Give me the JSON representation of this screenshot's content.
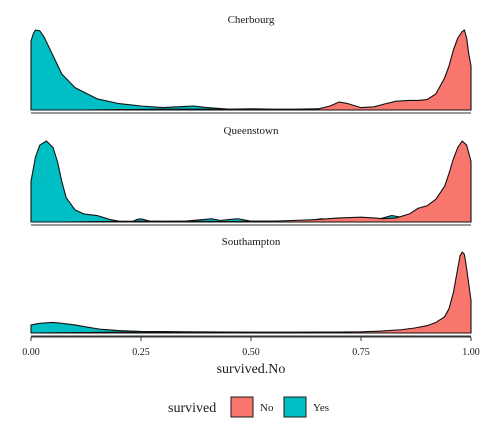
{
  "chart_data": {
    "type": "area",
    "chart_kind": "density ridgeline (faceted)",
    "xlabel": "survived.No",
    "ylabel": "",
    "xlim": [
      0,
      1
    ],
    "x_ticks": [
      0.0,
      0.25,
      0.5,
      0.75,
      1.0
    ],
    "x_tick_labels": [
      "0.00",
      "0.25",
      "0.50",
      "0.75",
      "1.00"
    ],
    "grid": false,
    "legend": {
      "title": "survived",
      "position": "bottom",
      "entries": [
        {
          "label": "No",
          "color": "#F8766D"
        },
        {
          "label": "Yes",
          "color": "#00BFC4"
        }
      ]
    },
    "series_colors": {
      "No": "#F8766D",
      "Yes": "#00BFC4"
    },
    "facets": [
      {
        "title": "Cherbourg",
        "series": [
          {
            "name": "Yes",
            "points": [
              [
                0.0,
                0.86
              ],
              [
                0.005,
                0.95
              ],
              [
                0.01,
                1.0
              ],
              [
                0.02,
                0.99
              ],
              [
                0.03,
                0.91
              ],
              [
                0.05,
                0.68
              ],
              [
                0.07,
                0.45
              ],
              [
                0.1,
                0.28
              ],
              [
                0.15,
                0.14
              ],
              [
                0.2,
                0.08
              ],
              [
                0.25,
                0.05
              ],
              [
                0.3,
                0.03
              ],
              [
                0.35,
                0.045
              ],
              [
                0.37,
                0.05
              ],
              [
                0.4,
                0.03
              ],
              [
                0.45,
                0.01
              ],
              [
                0.5,
                0.015
              ],
              [
                0.55,
                0.01
              ],
              [
                0.6,
                0.01
              ],
              [
                0.65,
                0.015
              ],
              [
                0.7,
                0.015
              ],
              [
                0.75,
                0.02
              ],
              [
                0.8,
                0.03
              ],
              [
                0.84,
                0.08
              ],
              [
                0.87,
                0.09
              ],
              [
                0.9,
                0.05
              ],
              [
                0.92,
                0.02
              ],
              [
                0.93,
                0.0
              ]
            ]
          },
          {
            "name": "No",
            "points": [
              [
                0.13,
                0.0
              ],
              [
                0.2,
                0.005
              ],
              [
                0.3,
                0.01
              ],
              [
                0.4,
                0.01
              ],
              [
                0.5,
                0.005
              ],
              [
                0.6,
                0.005
              ],
              [
                0.65,
                0.01
              ],
              [
                0.68,
                0.05
              ],
              [
                0.7,
                0.1
              ],
              [
                0.72,
                0.08
              ],
              [
                0.75,
                0.03
              ],
              [
                0.78,
                0.04
              ],
              [
                0.8,
                0.07
              ],
              [
                0.83,
                0.11
              ],
              [
                0.86,
                0.12
              ],
              [
                0.88,
                0.12
              ],
              [
                0.9,
                0.13
              ],
              [
                0.92,
                0.2
              ],
              [
                0.94,
                0.4
              ],
              [
                0.95,
                0.55
              ],
              [
                0.96,
                0.75
              ],
              [
                0.97,
                0.9
              ],
              [
                0.98,
                0.98
              ],
              [
                0.985,
                1.0
              ],
              [
                0.99,
                0.9
              ],
              [
                0.995,
                0.7
              ],
              [
                1.0,
                0.55
              ]
            ]
          }
        ]
      },
      {
        "title": "Queenstown",
        "series": [
          {
            "name": "Yes",
            "points": [
              [
                0.0,
                0.5
              ],
              [
                0.01,
                0.8
              ],
              [
                0.02,
                0.95
              ],
              [
                0.035,
                1.0
              ],
              [
                0.05,
                0.92
              ],
              [
                0.06,
                0.75
              ],
              [
                0.07,
                0.5
              ],
              [
                0.08,
                0.3
              ],
              [
                0.1,
                0.15
              ],
              [
                0.12,
                0.1
              ],
              [
                0.15,
                0.08
              ],
              [
                0.18,
                0.03
              ],
              [
                0.2,
                0.01
              ],
              [
                0.23,
                0.005
              ],
              [
                0.24,
                0.03
              ],
              [
                0.25,
                0.04
              ],
              [
                0.27,
                0.01
              ],
              [
                0.3,
                0.005
              ],
              [
                0.35,
                0.01
              ],
              [
                0.39,
                0.03
              ],
              [
                0.41,
                0.04
              ],
              [
                0.43,
                0.02
              ],
              [
                0.45,
                0.03
              ],
              [
                0.47,
                0.04
              ],
              [
                0.5,
                0.01
              ],
              [
                0.55,
                0.01
              ],
              [
                0.6,
                0.01
              ],
              [
                0.63,
                0.02
              ],
              [
                0.66,
                0.04
              ],
              [
                0.68,
                0.03
              ],
              [
                0.7,
                0.015
              ],
              [
                0.75,
                0.01
              ],
              [
                0.78,
                0.02
              ],
              [
                0.8,
                0.05
              ],
              [
                0.82,
                0.08
              ],
              [
                0.84,
                0.06
              ],
              [
                0.86,
                0.02
              ],
              [
                0.9,
                0.01
              ],
              [
                0.93,
                0.01
              ],
              [
                0.95,
                0.04
              ],
              [
                0.96,
                0.08
              ],
              [
                0.97,
                0.05
              ],
              [
                0.975,
                0.0
              ]
            ]
          },
          {
            "name": "No",
            "points": [
              [
                0.08,
                0.0
              ],
              [
                0.15,
                0.005
              ],
              [
                0.25,
                0.01
              ],
              [
                0.35,
                0.01
              ],
              [
                0.45,
                0.005
              ],
              [
                0.5,
                0.01
              ],
              [
                0.55,
                0.01
              ],
              [
                0.6,
                0.02
              ],
              [
                0.65,
                0.03
              ],
              [
                0.7,
                0.05
              ],
              [
                0.75,
                0.06
              ],
              [
                0.78,
                0.05
              ],
              [
                0.8,
                0.04
              ],
              [
                0.83,
                0.05
              ],
              [
                0.86,
                0.1
              ],
              [
                0.88,
                0.17
              ],
              [
                0.9,
                0.2
              ],
              [
                0.92,
                0.28
              ],
              [
                0.94,
                0.44
              ],
              [
                0.95,
                0.6
              ],
              [
                0.96,
                0.78
              ],
              [
                0.97,
                0.92
              ],
              [
                0.98,
                1.0
              ],
              [
                0.99,
                0.95
              ],
              [
                1.0,
                0.75
              ]
            ]
          }
        ]
      },
      {
        "title": "Southampton",
        "series": [
          {
            "name": "Yes",
            "points": [
              [
                0.0,
                0.1
              ],
              [
                0.02,
                0.12
              ],
              [
                0.05,
                0.13
              ],
              [
                0.07,
                0.12
              ],
              [
                0.1,
                0.1
              ],
              [
                0.13,
                0.07
              ],
              [
                0.16,
                0.045
              ],
              [
                0.2,
                0.03
              ],
              [
                0.25,
                0.02
              ],
              [
                0.3,
                0.018
              ],
              [
                0.35,
                0.015
              ],
              [
                0.4,
                0.013
              ],
              [
                0.45,
                0.011
              ],
              [
                0.5,
                0.01
              ],
              [
                0.55,
                0.009
              ],
              [
                0.6,
                0.008
              ],
              [
                0.65,
                0.008
              ],
              [
                0.7,
                0.008
              ],
              [
                0.75,
                0.01
              ],
              [
                0.8,
                0.015
              ],
              [
                0.85,
                0.02
              ],
              [
                0.9,
                0.015
              ],
              [
                0.95,
                0.02
              ],
              [
                0.97,
                0.02
              ],
              [
                0.98,
                0.01
              ],
              [
                1.0,
                0.0
              ]
            ]
          },
          {
            "name": "No",
            "points": [
              [
                0.0,
                0.0
              ],
              [
                0.1,
                0.005
              ],
              [
                0.2,
                0.01
              ],
              [
                0.3,
                0.008
              ],
              [
                0.4,
                0.008
              ],
              [
                0.5,
                0.008
              ],
              [
                0.6,
                0.01
              ],
              [
                0.7,
                0.012
              ],
              [
                0.75,
                0.015
              ],
              [
                0.8,
                0.025
              ],
              [
                0.84,
                0.04
              ],
              [
                0.87,
                0.06
              ],
              [
                0.9,
                0.09
              ],
              [
                0.92,
                0.13
              ],
              [
                0.94,
                0.2
              ],
              [
                0.95,
                0.3
              ],
              [
                0.96,
                0.5
              ],
              [
                0.97,
                0.8
              ],
              [
                0.975,
                0.95
              ],
              [
                0.98,
                1.0
              ],
              [
                0.985,
                0.97
              ],
              [
                0.99,
                0.8
              ],
              [
                0.995,
                0.6
              ],
              [
                1.0,
                0.4
              ]
            ]
          }
        ]
      }
    ]
  }
}
